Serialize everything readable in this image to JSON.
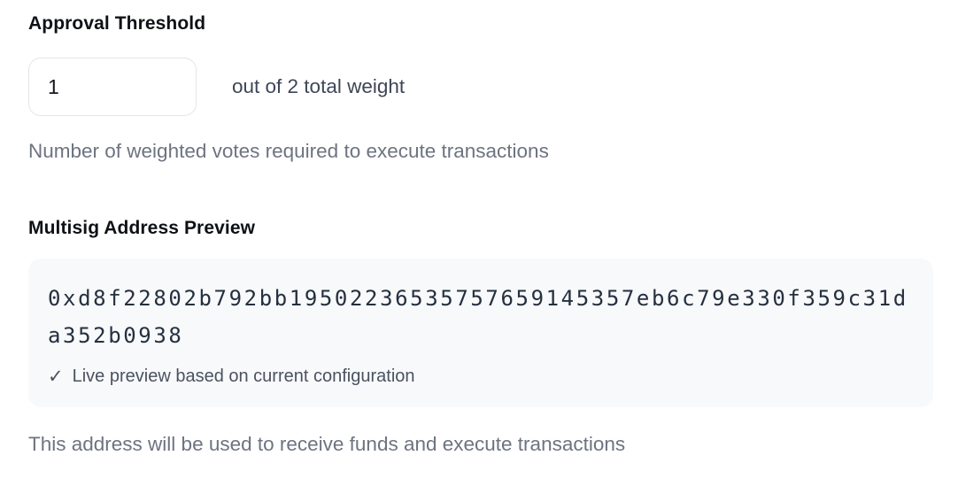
{
  "approval": {
    "label": "Approval Threshold",
    "threshold_value": "1",
    "weight_text": "out of 2 total weight",
    "helper": "Number of weighted votes required to execute transactions"
  },
  "preview": {
    "label": "Multisig Address Preview",
    "address": "0xd8f22802b792bb19502236535757659145357eb6c79e330f359c31da352b0938",
    "status": {
      "icon": "✓",
      "text": "Live preview based on current configuration"
    },
    "helper": "This address will be used to receive funds and execute transactions"
  },
  "colors": {
    "page_background": "#ffffff",
    "heading_text": "#0e1116",
    "body_text": "#3e4656",
    "muted_text": "#6d7380",
    "address_text": "#25303f",
    "status_text": "#4a5260",
    "box_background": "#f8f9fb",
    "input_border": "#e3e5ea"
  }
}
